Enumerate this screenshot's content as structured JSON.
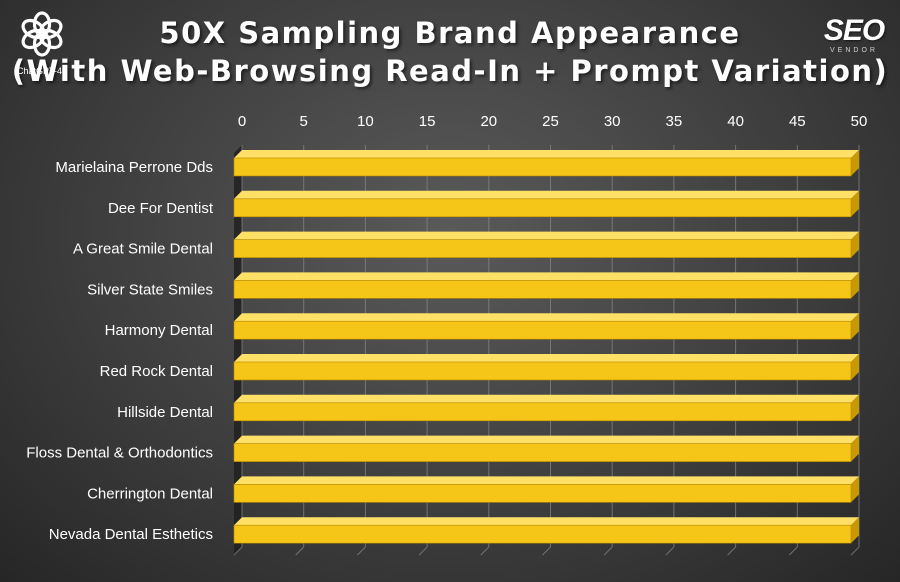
{
  "header": {
    "title_line1": "50X Sampling Brand Appearance",
    "title_line2": "(With Web-Browsing Read-In + Prompt Variation)"
  },
  "logo": {
    "icon": "openai-logo-icon",
    "caption": "ChatGPT-4o"
  },
  "brand": {
    "text": "SEO",
    "subtext": "VENDOR"
  },
  "colors": {
    "bar_front": "#f5c518",
    "bar_top": "#ffe066",
    "bar_side": "#c99a00",
    "gridline": "#8a8a8a",
    "background": "#3e3e3e"
  },
  "chart_data": {
    "type": "bar",
    "orientation": "horizontal",
    "style": "3d",
    "categories": [
      "Marielaina Perrone Dds",
      "Dee For Dentist",
      "A Great Smile Dental",
      "Silver State Smiles",
      "Harmony Dental",
      "Red Rock Dental",
      "Hillside Dental",
      "Floss Dental & Orthodontics",
      "Cherrington Dental",
      "Nevada Dental Esthetics"
    ],
    "values": [
      50,
      50,
      50,
      50,
      50,
      50,
      50,
      50,
      50,
      50
    ],
    "xlim": [
      0,
      50
    ],
    "xticks": [
      "0",
      "5",
      "10",
      "15",
      "20",
      "25",
      "30",
      "35",
      "40",
      "45",
      "50"
    ],
    "x_axis_position": "top",
    "grid": true,
    "legend": "none"
  }
}
